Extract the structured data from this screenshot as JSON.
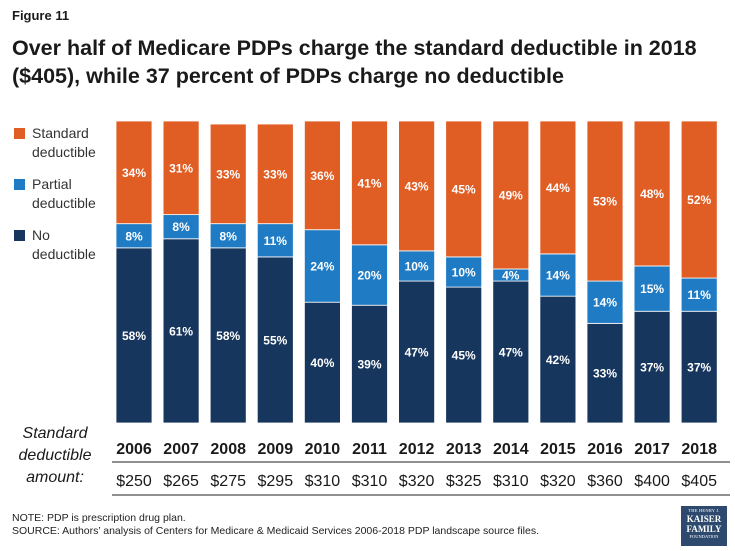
{
  "figure_label": "Figure 11",
  "title": "Over half of Medicare PDPs charge the standard deductible in 2018 ($405), while 37 percent of PDPs charge no deductible",
  "row_labels": {
    "years": "Standard",
    "amounts_line1": "deductible",
    "amounts_line2": "amount:"
  },
  "notes": {
    "note": "NOTE: PDP is prescription drug plan.",
    "source": "SOURCE: Authors’ analysis of Centers for Medicare & Medicaid Services 2006-2018 PDP landscape source files."
  },
  "logo": {
    "line1": "THE HENRY J.",
    "line2a": "KAISER",
    "line2b": "FAMILY",
    "line3": "FOUNDATION"
  },
  "colors": {
    "standard": "#e05d24",
    "partial": "#1f7bc4",
    "none": "#17365d"
  },
  "chart_data": {
    "type": "bar",
    "stacked": true,
    "categories": [
      "2006",
      "2007",
      "2008",
      "2009",
      "2010",
      "2011",
      "2012",
      "2013",
      "2014",
      "2015",
      "2016",
      "2017",
      "2018"
    ],
    "amounts": [
      "$250",
      "$265",
      "$275",
      "$295",
      "$310",
      "$310",
      "$320",
      "$325",
      "$310",
      "$320",
      "$360",
      "$400",
      "$405"
    ],
    "series": [
      {
        "name": "No deductible",
        "legend": [
          "No",
          "deductible"
        ],
        "color": "#17365d",
        "values": [
          58,
          61,
          58,
          55,
          40,
          39,
          47,
          45,
          47,
          42,
          33,
          37,
          37
        ],
        "labels": [
          "58%",
          "61%",
          "58%",
          "55%",
          "40%",
          "39%",
          "47%",
          "45%",
          "47%",
          "42%",
          "33%",
          "37%",
          "37%"
        ]
      },
      {
        "name": "Partial deductible",
        "legend": [
          "Partial",
          "deductible"
        ],
        "color": "#1f7bc4",
        "values": [
          8,
          8,
          8,
          11,
          24,
          20,
          10,
          10,
          4,
          14,
          14,
          15,
          11
        ],
        "labels": [
          "8%",
          "8%",
          "8%",
          "11%",
          "24%",
          "20%",
          "10%",
          "10%",
          "4%",
          "14%",
          "14%",
          "15%",
          "11%"
        ]
      },
      {
        "name": "Standard deductible",
        "legend": [
          "Standard",
          "deductible"
        ],
        "color": "#e05d24",
        "values": [
          34,
          31,
          33,
          33,
          36,
          41,
          43,
          45,
          49,
          44,
          53,
          48,
          52
        ],
        "labels": [
          "34%",
          "31%",
          "33%",
          "33%",
          "36%",
          "41%",
          "43%",
          "45%",
          "49%",
          "44%",
          "53%",
          "48%",
          "52%"
        ]
      }
    ],
    "ylim": [
      0,
      100
    ]
  }
}
